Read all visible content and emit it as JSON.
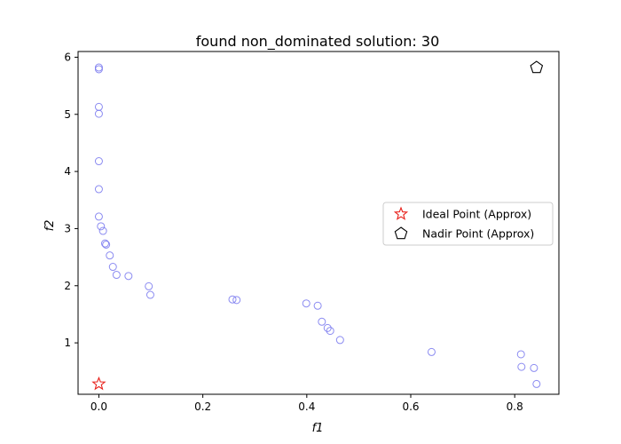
{
  "chart_data": {
    "type": "scatter",
    "title": "found non_dominated solution: 30",
    "xlabel": "f1",
    "ylabel": "f2",
    "xlim": [
      -0.04,
      0.885
    ],
    "ylim": [
      0.1,
      6.1
    ],
    "xticks": [
      0.0,
      0.2,
      0.4,
      0.6,
      0.8
    ],
    "xtick_labels": [
      "0.0",
      "0.2",
      "0.4",
      "0.6",
      "0.8"
    ],
    "yticks": [
      1,
      2,
      3,
      4,
      5,
      6
    ],
    "ytick_labels": [
      "1",
      "2",
      "3",
      "4",
      "5",
      "6"
    ],
    "grid": false,
    "legend_position": "center-right",
    "series": [
      {
        "marker": "circle-hollow",
        "color": "#7777ee",
        "x": [
          0.0,
          0.0,
          0.0,
          0.0,
          0.0,
          0.0,
          0.0,
          0.004,
          0.008,
          0.012,
          0.014,
          0.021,
          0.027,
          0.034,
          0.057,
          0.096,
          0.099,
          0.257,
          0.265,
          0.399,
          0.421,
          0.429,
          0.44,
          0.445,
          0.464,
          0.64,
          0.812,
          0.813,
          0.837,
          0.842
        ],
        "y": [
          5.82,
          5.79,
          5.13,
          5.01,
          4.18,
          3.69,
          3.21,
          3.04,
          2.96,
          2.74,
          2.72,
          2.53,
          2.33,
          2.19,
          2.17,
          1.99,
          1.84,
          1.76,
          1.75,
          1.69,
          1.65,
          1.37,
          1.26,
          1.21,
          1.05,
          0.84,
          0.8,
          0.58,
          0.56,
          0.28
        ]
      },
      {
        "name": "Ideal Point (Approx)",
        "marker": "star-hollow",
        "color": "#e8201a",
        "x": [
          0.0
        ],
        "y": [
          0.28
        ]
      },
      {
        "name": "Nadir Point (Approx)",
        "marker": "pentagon-hollow",
        "color": "#000000",
        "x": [
          0.842
        ],
        "y": [
          5.82
        ]
      }
    ]
  }
}
